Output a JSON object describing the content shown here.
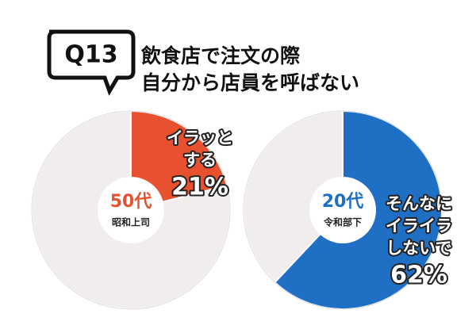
{
  "question": {
    "number": "Q13",
    "lines": [
      "飲食店で注文の際",
      "自分から店員を呼ばない"
    ]
  },
  "chart_data": [
    {
      "type": "pie",
      "center_label": [
        "50代",
        "昭和上司"
      ],
      "categories": [
        [
          "イラッと",
          "する"
        ],
        null
      ],
      "values": [
        21,
        79
      ],
      "value_labels": [
        "21%",
        null
      ],
      "colors": [
        "#e8512f",
        "#f1eded"
      ]
    },
    {
      "type": "pie",
      "center_label": [
        "20代",
        "令和部下"
      ],
      "categories": [
        [
          "そんなに",
          "イライラ",
          "しないで"
        ],
        null
      ],
      "values": [
        62,
        38
      ],
      "value_labels": [
        "62%",
        null
      ],
      "colors": [
        "#1f6fc4",
        "#f1eded"
      ]
    }
  ]
}
